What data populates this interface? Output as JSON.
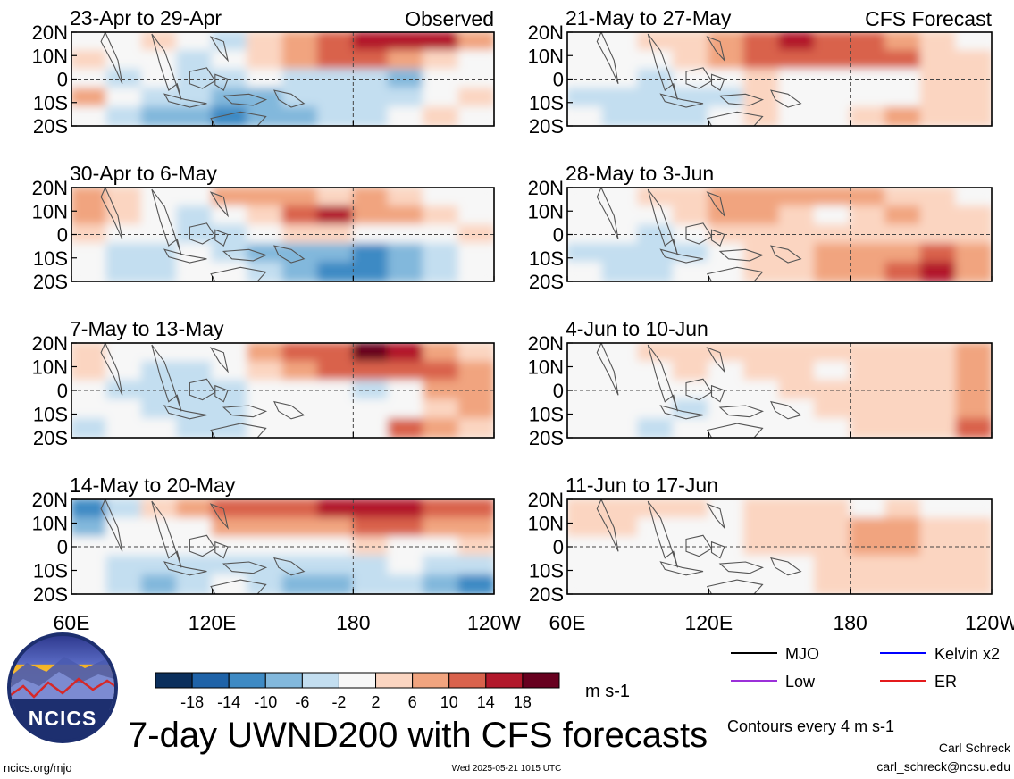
{
  "figure": {
    "title": "7-day UWND200 with CFS forecasts",
    "units": "m s-1",
    "contour_note": "Contours every 4 m s-1",
    "author": "Carl Schreck",
    "email": "carl_schreck@ncsu.edu",
    "site": "ncics.org/mjo",
    "timestamp": "Wed 2025-05-21 1015 UTC",
    "logo_text": "NCICS"
  },
  "columns": {
    "left_label": "Observed",
    "right_label": "CFS Forecast"
  },
  "colorbar": {
    "colors": [
      "#0b2f5c",
      "#1f63a8",
      "#3e8ac4",
      "#82b8dc",
      "#c3def0",
      "#f7f7f7",
      "#fbd5c1",
      "#f1a47f",
      "#d9624c",
      "#b2182b",
      "#67001f"
    ],
    "tick_labels": [
      "-18",
      "-14",
      "-10",
      "-6",
      "-2",
      "2",
      "6",
      "10",
      "14",
      "18"
    ]
  },
  "legend": {
    "items": [
      {
        "label": "MJO",
        "color": "#000000"
      },
      {
        "label": "Kelvin x2",
        "color": "#0000ff"
      },
      {
        "label": "Low",
        "color": "#9b30d9"
      },
      {
        "label": "ER",
        "color": "#e41a1c"
      }
    ]
  },
  "chart_data": {
    "type": "heatmap",
    "variable": "UWND200",
    "x_ticks": [
      "60E",
      "120E",
      "180",
      "120W"
    ],
    "y_ticks": [
      "20N",
      "10N",
      "0",
      "10S",
      "20S"
    ],
    "panels": [
      {
        "column": "left",
        "row": 0,
        "date_range": "23-Apr to 29-Apr",
        "grid": [
          [
            -2,
            -2,
            2,
            -2,
            -6,
            2,
            6,
            10,
            14,
            14,
            14,
            6
          ],
          [
            2,
            -2,
            -2,
            -6,
            -2,
            2,
            6,
            10,
            10,
            6,
            2,
            -2
          ],
          [
            -2,
            -6,
            -2,
            -6,
            -6,
            -2,
            -6,
            -6,
            -6,
            -10,
            -2,
            -2
          ],
          [
            6,
            -2,
            -6,
            -6,
            -10,
            -10,
            -6,
            -6,
            -6,
            -6,
            -2,
            2
          ],
          [
            -2,
            -6,
            -10,
            -10,
            -14,
            -10,
            -10,
            -6,
            -6,
            -2,
            2,
            -2
          ]
        ]
      },
      {
        "column": "left",
        "row": 1,
        "date_range": "30-Apr to 6-May",
        "grid": [
          [
            6,
            2,
            -2,
            -2,
            6,
            6,
            6,
            2,
            6,
            2,
            -2,
            -2
          ],
          [
            6,
            2,
            -2,
            -6,
            -2,
            2,
            10,
            14,
            6,
            6,
            2,
            -2
          ],
          [
            2,
            -2,
            -2,
            -6,
            -6,
            -2,
            2,
            2,
            -2,
            -2,
            -2,
            2
          ],
          [
            -2,
            -6,
            -6,
            -2,
            -6,
            -10,
            -10,
            -10,
            -14,
            -10,
            -6,
            -2
          ],
          [
            -2,
            -6,
            -6,
            -2,
            -2,
            -6,
            -10,
            -14,
            -14,
            -10,
            -6,
            -2
          ]
        ]
      },
      {
        "column": "left",
        "row": 2,
        "date_range": "7-May to 13-May",
        "grid": [
          [
            2,
            -2,
            -2,
            -2,
            -2,
            6,
            10,
            10,
            18,
            14,
            6,
            2
          ],
          [
            2,
            -2,
            -6,
            -6,
            -2,
            2,
            6,
            10,
            10,
            10,
            10,
            6
          ],
          [
            -2,
            -6,
            -6,
            -6,
            -6,
            -2,
            -2,
            -2,
            -6,
            -2,
            6,
            6
          ],
          [
            -2,
            -2,
            -6,
            -6,
            -6,
            -2,
            -2,
            -2,
            -2,
            -2,
            2,
            6
          ],
          [
            -6,
            -2,
            -2,
            -6,
            -6,
            -2,
            -2,
            -2,
            -2,
            10,
            6,
            2
          ]
        ]
      },
      {
        "column": "left",
        "row": 3,
        "date_range": "14-May to 20-May",
        "grid": [
          [
            -14,
            -6,
            2,
            6,
            10,
            10,
            10,
            14,
            14,
            14,
            10,
            10
          ],
          [
            -10,
            -2,
            -2,
            -2,
            6,
            6,
            6,
            6,
            10,
            10,
            6,
            6
          ],
          [
            -2,
            -2,
            -2,
            -2,
            -2,
            -2,
            -2,
            -2,
            2,
            -2,
            -2,
            2
          ],
          [
            -2,
            -6,
            -6,
            -6,
            -6,
            -6,
            -6,
            -6,
            -6,
            -2,
            -6,
            -6
          ],
          [
            -2,
            -6,
            -10,
            -6,
            -2,
            -6,
            -10,
            -10,
            -6,
            -6,
            -10,
            -14
          ]
        ]
      },
      {
        "column": "right",
        "row": 0,
        "date_range": "21-May to 27-May",
        "grid": [
          [
            -2,
            -2,
            2,
            2,
            6,
            10,
            14,
            10,
            10,
            6,
            2,
            -2
          ],
          [
            -2,
            -2,
            -2,
            2,
            6,
            10,
            10,
            10,
            10,
            10,
            2,
            2
          ],
          [
            -2,
            -2,
            -6,
            -2,
            -2,
            2,
            -2,
            -2,
            -2,
            -2,
            2,
            2
          ],
          [
            -6,
            -6,
            -6,
            -6,
            -6,
            2,
            -2,
            -2,
            -2,
            -2,
            2,
            2
          ],
          [
            -2,
            -6,
            -6,
            -6,
            -2,
            2,
            -2,
            -2,
            2,
            6,
            2,
            2
          ]
        ]
      },
      {
        "column": "right",
        "row": 1,
        "date_range": "28-May to 3-Jun",
        "grid": [
          [
            -2,
            -2,
            2,
            2,
            6,
            6,
            6,
            6,
            6,
            2,
            2,
            -2
          ],
          [
            -2,
            -2,
            -2,
            2,
            6,
            6,
            2,
            -2,
            2,
            6,
            2,
            2
          ],
          [
            -2,
            -2,
            -6,
            -2,
            2,
            2,
            2,
            2,
            2,
            2,
            2,
            2
          ],
          [
            -6,
            -6,
            -6,
            -6,
            -2,
            2,
            2,
            6,
            6,
            6,
            10,
            6
          ],
          [
            -2,
            -6,
            -6,
            -2,
            -2,
            2,
            2,
            6,
            6,
            10,
            14,
            6
          ]
        ]
      },
      {
        "column": "right",
        "row": 2,
        "date_range": "4-Jun to 10-Jun",
        "grid": [
          [
            -2,
            -2,
            2,
            2,
            2,
            2,
            2,
            2,
            2,
            2,
            2,
            6
          ],
          [
            -2,
            -2,
            -2,
            2,
            -2,
            2,
            2,
            -2,
            2,
            2,
            2,
            6
          ],
          [
            -2,
            -2,
            -2,
            -2,
            -2,
            -2,
            2,
            2,
            2,
            2,
            2,
            6
          ],
          [
            -2,
            -2,
            -2,
            -6,
            -2,
            -2,
            -2,
            2,
            2,
            2,
            2,
            6
          ],
          [
            -2,
            -2,
            -6,
            -2,
            -2,
            -2,
            -2,
            -2,
            2,
            2,
            2,
            10
          ]
        ]
      },
      {
        "column": "right",
        "row": 3,
        "date_range": "11-Jun to 17-Jun",
        "grid": [
          [
            2,
            2,
            2,
            2,
            -2,
            2,
            2,
            2,
            -2,
            2,
            -2,
            -2
          ],
          [
            2,
            2,
            -2,
            -2,
            -2,
            2,
            2,
            2,
            6,
            6,
            2,
            2
          ],
          [
            -2,
            -2,
            -2,
            -2,
            -2,
            2,
            2,
            2,
            6,
            6,
            2,
            2
          ],
          [
            -2,
            -2,
            -2,
            -2,
            -2,
            -2,
            -2,
            2,
            2,
            2,
            2,
            2
          ],
          [
            -2,
            -2,
            -2,
            -2,
            -2,
            -2,
            -2,
            2,
            2,
            2,
            2,
            2
          ]
        ]
      }
    ]
  }
}
